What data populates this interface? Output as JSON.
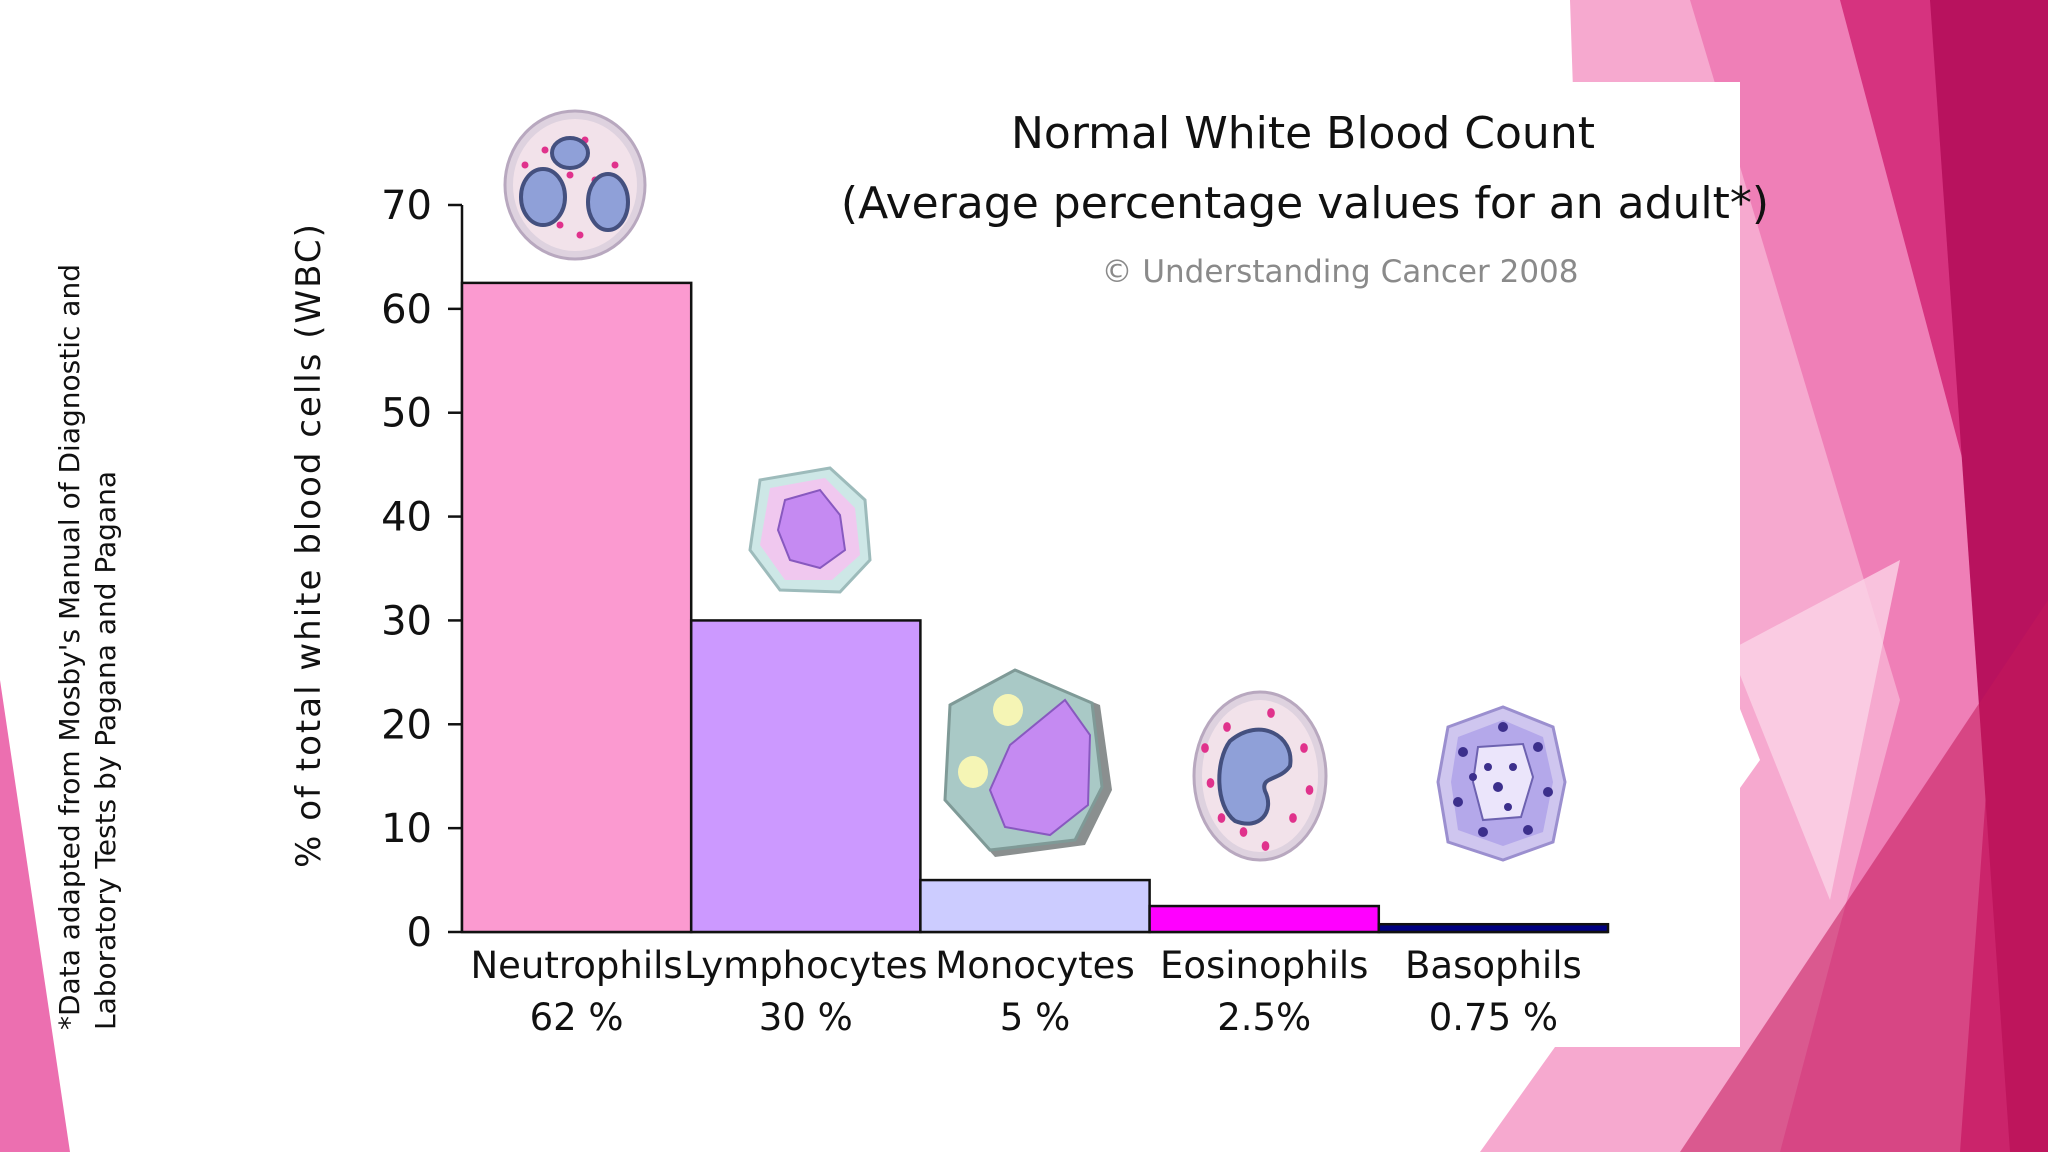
{
  "colors": {
    "neutrophils": "#fb9ad0",
    "lymphocytes": "#cc99ff",
    "monocytes": "#ccccff",
    "eosinophils": "#ff00ff",
    "basophils": "#000080",
    "slide_accent": "#c2185b"
  },
  "footnote": {
    "line1": "*Data adapted from Mosby's Manual of Diagnostic and",
    "line2": "Laboratory Tests by Pagana and Pagana"
  },
  "chart_data": {
    "type": "bar",
    "title": "Normal White Blood Count",
    "subtitle": "(Average percentage values for an adult*)",
    "copyright": "© Understanding Cancer 2008",
    "ylabel": "% of total white blood cells (WBC)",
    "ylim": [
      0,
      70
    ],
    "yticks": [
      0,
      10,
      20,
      30,
      40,
      50,
      60,
      70
    ],
    "categories": [
      "Neutrophils",
      "Lymphocytes",
      "Monocytes",
      "Eosinophils",
      "Basophils"
    ],
    "value_labels": [
      "62 %",
      "30 %",
      "5 %",
      "2.5%",
      "0.75 %"
    ],
    "values": [
      62.5,
      30,
      5,
      2.5,
      0.75
    ],
    "cell_icons": [
      "neutrophil-cell-icon",
      "lymphocyte-cell-icon",
      "monocyte-cell-icon",
      "eosinophil-cell-icon",
      "basophil-cell-icon"
    ],
    "grid": false
  }
}
